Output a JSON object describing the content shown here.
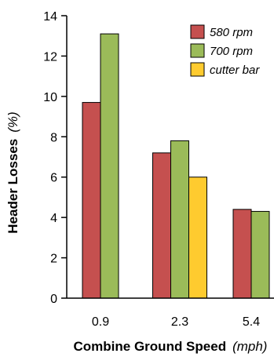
{
  "chart_data": {
    "type": "bar",
    "categories": [
      "0.9",
      "2.3",
      "5.4"
    ],
    "series": [
      {
        "name": "580 rpm",
        "color": "#c5504f",
        "values": [
          9.7,
          7.2,
          4.4
        ]
      },
      {
        "name": "700 rpm",
        "color": "#9bbb59",
        "values": [
          13.1,
          7.8,
          4.3
        ]
      },
      {
        "name": "cutter bar",
        "color": "#fecb2f",
        "values": [
          null,
          6.0,
          null
        ]
      }
    ],
    "xlabel": "Combine Ground Speed",
    "xlabel_unit": "(mph)",
    "ylabel": "Header Losses",
    "ylabel_unit": "(%)",
    "ylim": [
      0,
      14
    ],
    "yticks": [
      "0",
      "2",
      "4",
      "6",
      "8",
      "10",
      "12",
      "14"
    ],
    "legend_position": "top-right",
    "grid": false
  }
}
